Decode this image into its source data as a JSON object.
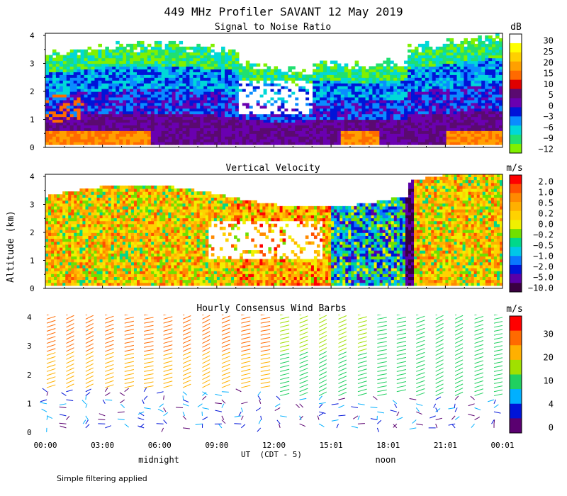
{
  "chart_data": {
    "type": "heatmap",
    "title": "449 MHz Profiler SAVANT 12 May 2019",
    "ylabel": "Altitude (km)",
    "xlabel": "UT  (CDT - 5)",
    "local_time_labels": [
      "midnight",
      "noon"
    ],
    "footnote": "Simple filtering applied",
    "x_ticks": [
      "00:00",
      "03:00",
      "06:00",
      "09:00",
      "12:00",
      "15:01",
      "18:01",
      "21:01",
      "00:01"
    ],
    "y_ticks": [
      "0",
      "1",
      "2",
      "3",
      "4"
    ],
    "ylim": [
      0,
      4.2
    ],
    "xlim_hours": [
      0,
      24
    ],
    "panels": [
      {
        "title": "Signal to Noise Ratio",
        "unit": "dB",
        "colorbar_labels": [
          "30",
          "25",
          "20",
          "15",
          "10",
          "5",
          "0",
          "−3",
          "−6",
          "−9",
          "−12"
        ],
        "colors": [
          "#ffffff",
          "#ffff00",
          "#ffd000",
          "#ffa000",
          "#ff6a00",
          "#e00000",
          "#5a0a70",
          "#6a00b0",
          "#0014d8",
          "#0a8cff",
          "#00d8d8",
          "#20e070",
          "#80f000"
        ]
      },
      {
        "title": "Vertical Velocity",
        "unit": "m/s",
        "colorbar_labels": [
          "2.0",
          "1.0",
          "0.5",
          "0.2",
          "0.0",
          "−0.2",
          "−0.5",
          "−1.0",
          "−2.0",
          "−5.0",
          "−10.0"
        ],
        "colors": [
          "#ff0000",
          "#ff5000",
          "#ff8a00",
          "#ffb000",
          "#ffd200",
          "#f0f000",
          "#70e000",
          "#00d88a",
          "#00c8e8",
          "#0a78ff",
          "#0014d8",
          "#5a00a8",
          "#3a0040"
        ]
      },
      {
        "title": "Hourly Consensus Wind Barbs",
        "unit": "m/s",
        "colorbar_labels": [
          "30",
          "20",
          "10",
          "4",
          "0"
        ],
        "colors": [
          "#ff0000",
          "#ff6a00",
          "#ffb000",
          "#a0e000",
          "#20d060",
          "#00b0ff",
          "#0014d8",
          "#5a0070"
        ]
      }
    ]
  }
}
